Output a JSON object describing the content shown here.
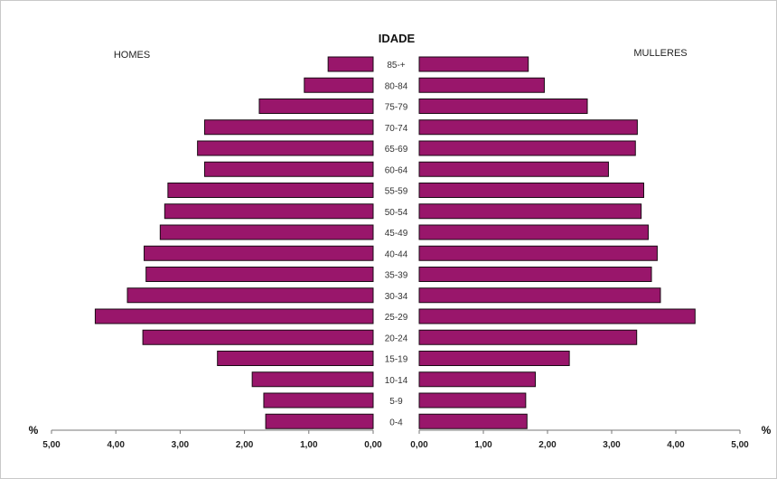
{
  "chart_data": {
    "type": "bar",
    "title": "IDADE",
    "left_label": "HOMES",
    "right_label": "MULLERES",
    "unit_label": "%",
    "categories": [
      "85-+",
      "80-84",
      "75-79",
      "70-74",
      "65-69",
      "60-64",
      "55-59",
      "50-54",
      "45-49",
      "40-44",
      "35-39",
      "30-34",
      "25-29",
      "20-24",
      "15-19",
      "10-14",
      "5-9",
      "0-4"
    ],
    "series": [
      {
        "name": "HOMES",
        "values": [
          0.7,
          1.07,
          1.77,
          2.62,
          2.73,
          2.62,
          3.19,
          3.24,
          3.31,
          3.56,
          3.53,
          3.82,
          4.32,
          3.58,
          2.42,
          1.88,
          1.7,
          1.67
        ]
      },
      {
        "name": "MULLERES",
        "values": [
          1.7,
          1.95,
          2.62,
          3.4,
          3.37,
          2.95,
          3.5,
          3.46,
          3.57,
          3.71,
          3.62,
          3.76,
          4.3,
          3.39,
          2.34,
          1.81,
          1.66,
          1.68
        ]
      }
    ],
    "xlim": [
      0,
      5
    ],
    "left_ticks": [
      "5,00",
      "4,00",
      "3,00",
      "2,00",
      "1,00",
      "0,00"
    ],
    "right_ticks": [
      "0,00",
      "1,00",
      "2,00",
      "3,00",
      "4,00",
      "5,00"
    ],
    "bar_color": "#99166b",
    "bar_edge": "#1a0a14",
    "grid": false
  }
}
